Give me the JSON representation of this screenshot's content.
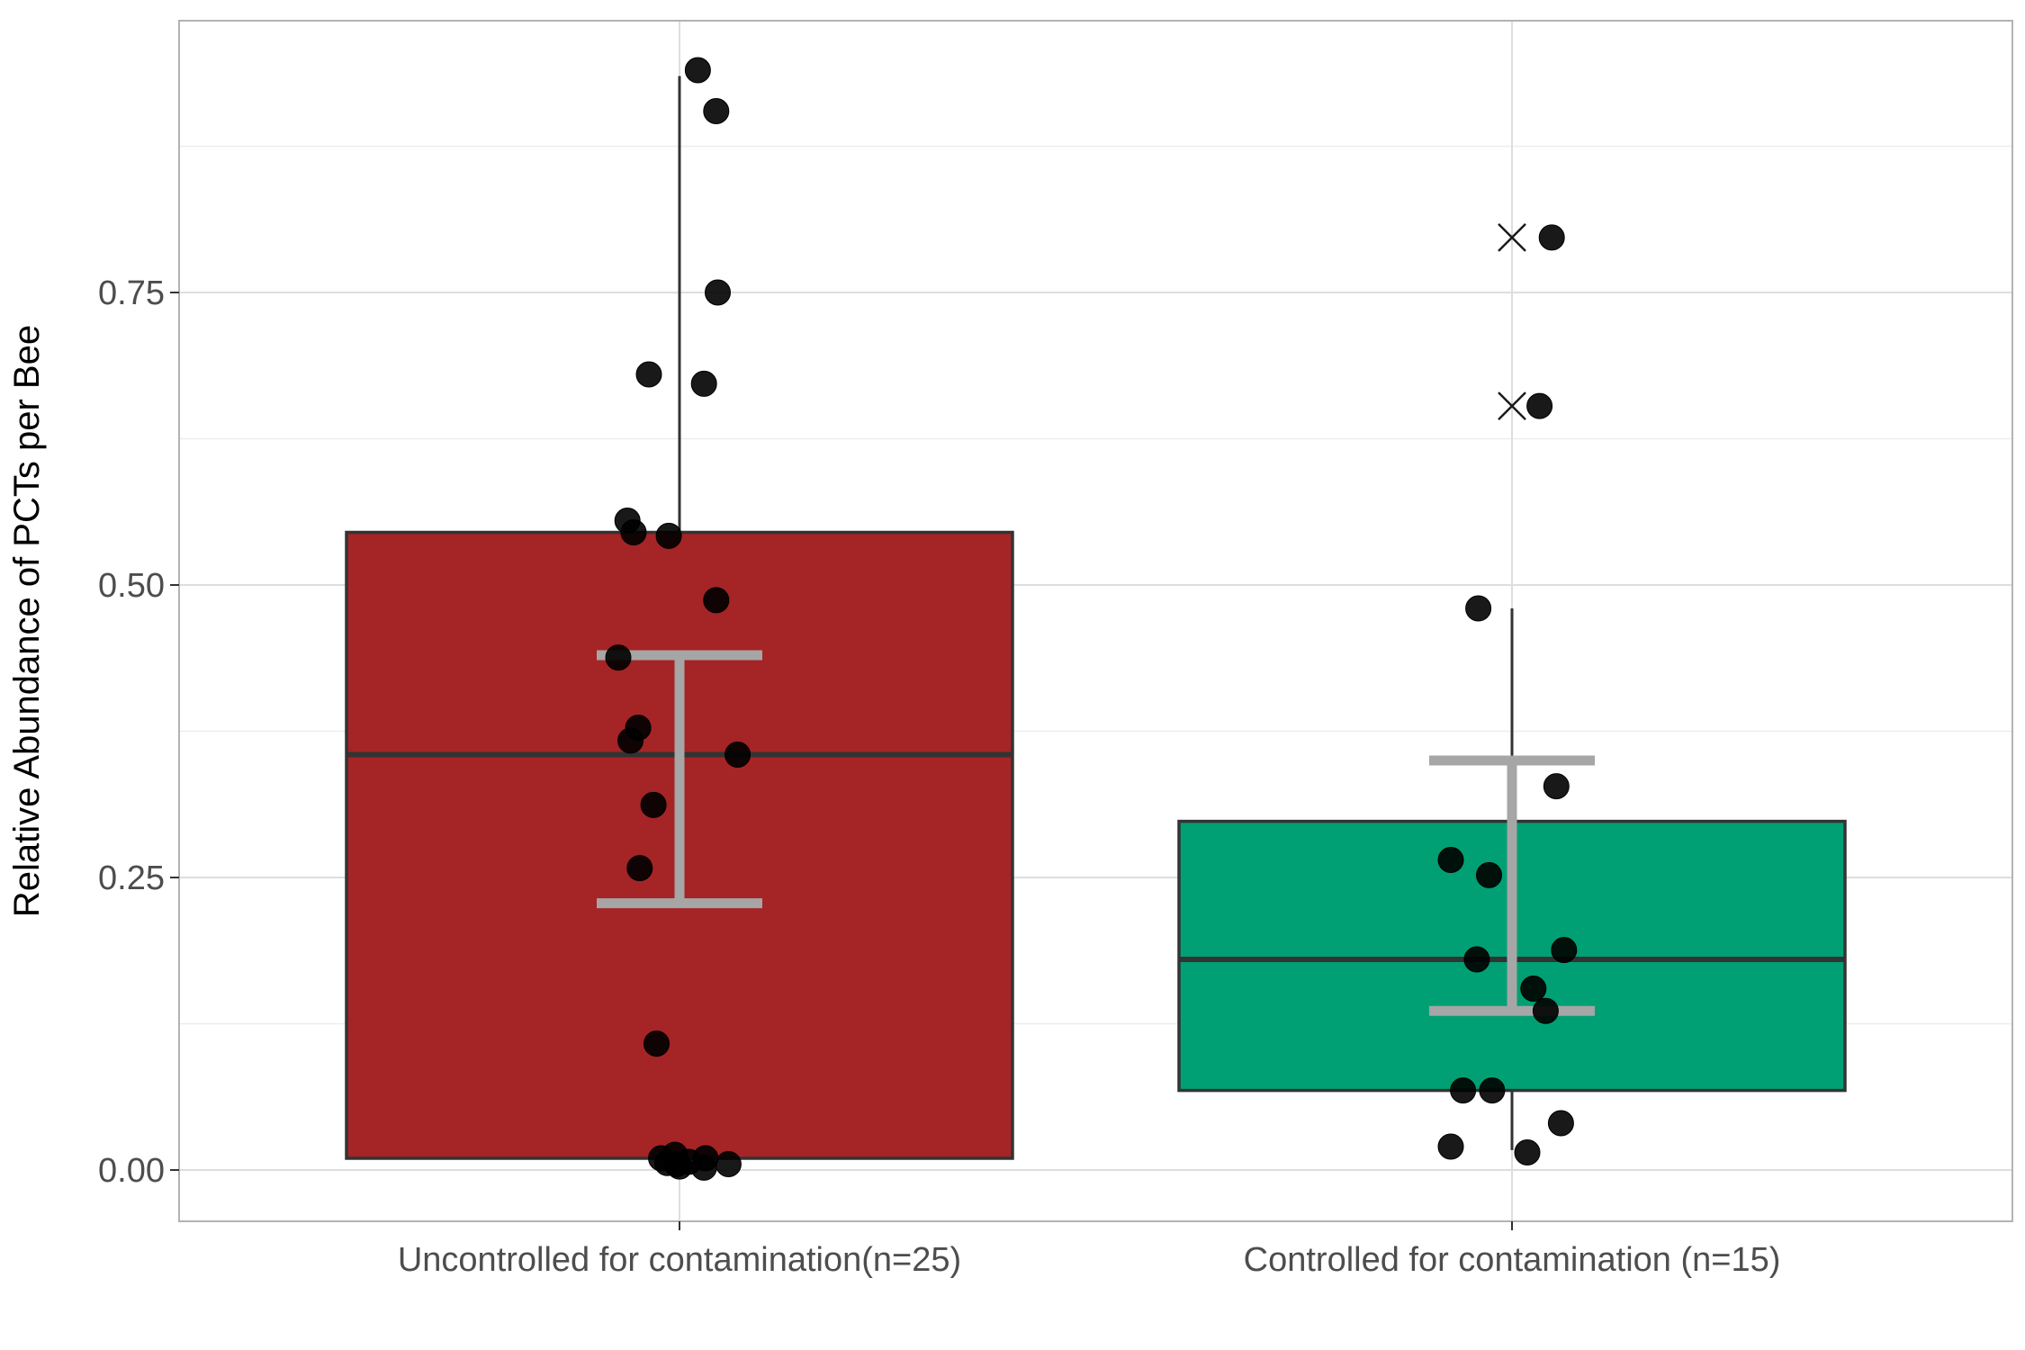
{
  "chart_data": {
    "type": "box",
    "xlabel": "",
    "ylabel": "Relative Abundance of PCTs per Bee",
    "ylim": [
      -0.09,
      0.98
    ],
    "yticks": [
      0.0,
      0.25,
      0.5,
      0.75
    ],
    "ytick_labels": [
      "0.00",
      "0.25",
      "0.50",
      "0.75"
    ],
    "grid": true,
    "categories": [
      "Uncontrolled for contamination(n=25)",
      "Controlled for contamination (n=15)"
    ],
    "boxes": [
      {
        "category": "Uncontrolled for contamination(n=25)",
        "color": "#a52426",
        "q1": 0.01,
        "median": 0.355,
        "q3": 0.545,
        "whisker_low": 0.01,
        "whisker_high": 0.935,
        "mean_ci": [
          0.228,
          0.44
        ],
        "outliers_x": [],
        "points": [
          0.94,
          0.905,
          0.75,
          0.68,
          0.672,
          0.555,
          0.545,
          0.542,
          0.487,
          0.438,
          0.378,
          0.367,
          0.355,
          0.312,
          0.258,
          0.108,
          0.01,
          0.013,
          0.005,
          0.003,
          0.007,
          0.01,
          0.002,
          0.005,
          0.006
        ],
        "jitter": [
          0.12,
          0.24,
          0.25,
          -0.2,
          0.16,
          -0.34,
          -0.3,
          -0.07,
          0.24,
          -0.4,
          -0.27,
          -0.32,
          0.38,
          -0.17,
          -0.26,
          -0.15,
          -0.12,
          -0.03,
          -0.02,
          0.0,
          0.06,
          0.17,
          0.16,
          0.32,
          -0.08
        ]
      },
      {
        "category": "Controlled for contamination (n=15)",
        "color": "#00a074",
        "q1": 0.068,
        "median": 0.18,
        "q3": 0.298,
        "whisker_low": 0.017,
        "whisker_high": 0.48,
        "mean_ci": [
          0.136,
          0.35
        ],
        "outliers_x": [
          0.797,
          0.653
        ],
        "points": [
          0.797,
          0.653,
          0.48,
          0.328,
          0.265,
          0.252,
          0.188,
          0.18,
          0.155,
          0.136,
          0.068,
          0.068,
          0.04,
          0.02,
          0.015
        ],
        "jitter": [
          0.26,
          0.18,
          -0.22,
          0.29,
          -0.4,
          -0.15,
          0.34,
          -0.23,
          0.14,
          0.22,
          -0.32,
          -0.13,
          0.32,
          -0.4,
          0.1
        ]
      }
    ]
  }
}
